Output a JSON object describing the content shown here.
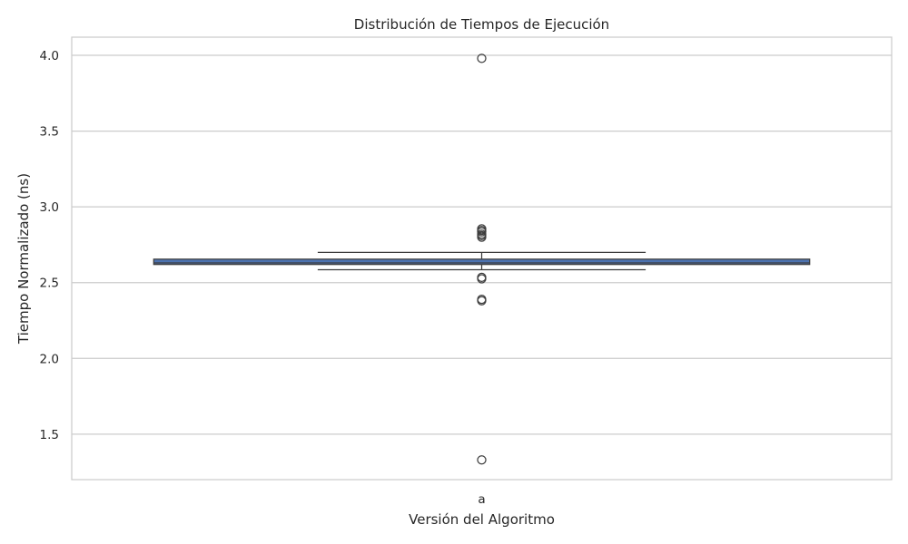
{
  "chart_data": {
    "type": "box",
    "title": "Distribución de Tiempos de Ejecución",
    "xlabel": "Versión del Algoritmo",
    "ylabel": "Tiempo Normalizado (ns)",
    "categories": [
      "a"
    ],
    "ylim": [
      1.2,
      4.12
    ],
    "yticks": [
      1.5,
      2.0,
      2.5,
      3.0,
      3.5,
      4.0
    ],
    "ytick_labels": [
      "1.5",
      "2.0",
      "2.5",
      "3.0",
      "3.5",
      "4.0"
    ],
    "grid": true,
    "boxes": [
      {
        "category": "a",
        "q1": 2.62,
        "median": 2.63,
        "q3": 2.655,
        "whisker_low": 2.585,
        "whisker_high": 2.7,
        "outliers": [
          3.98,
          2.855,
          2.845,
          2.835,
          2.82,
          2.81,
          2.8,
          2.535,
          2.525,
          2.39,
          2.38,
          1.33
        ]
      }
    ],
    "colors": {
      "box_fill": "#4c72b0",
      "line": "#3d3d3d",
      "grid": "#cccccc",
      "frame": "#cccccc",
      "text": "#262626"
    }
  }
}
